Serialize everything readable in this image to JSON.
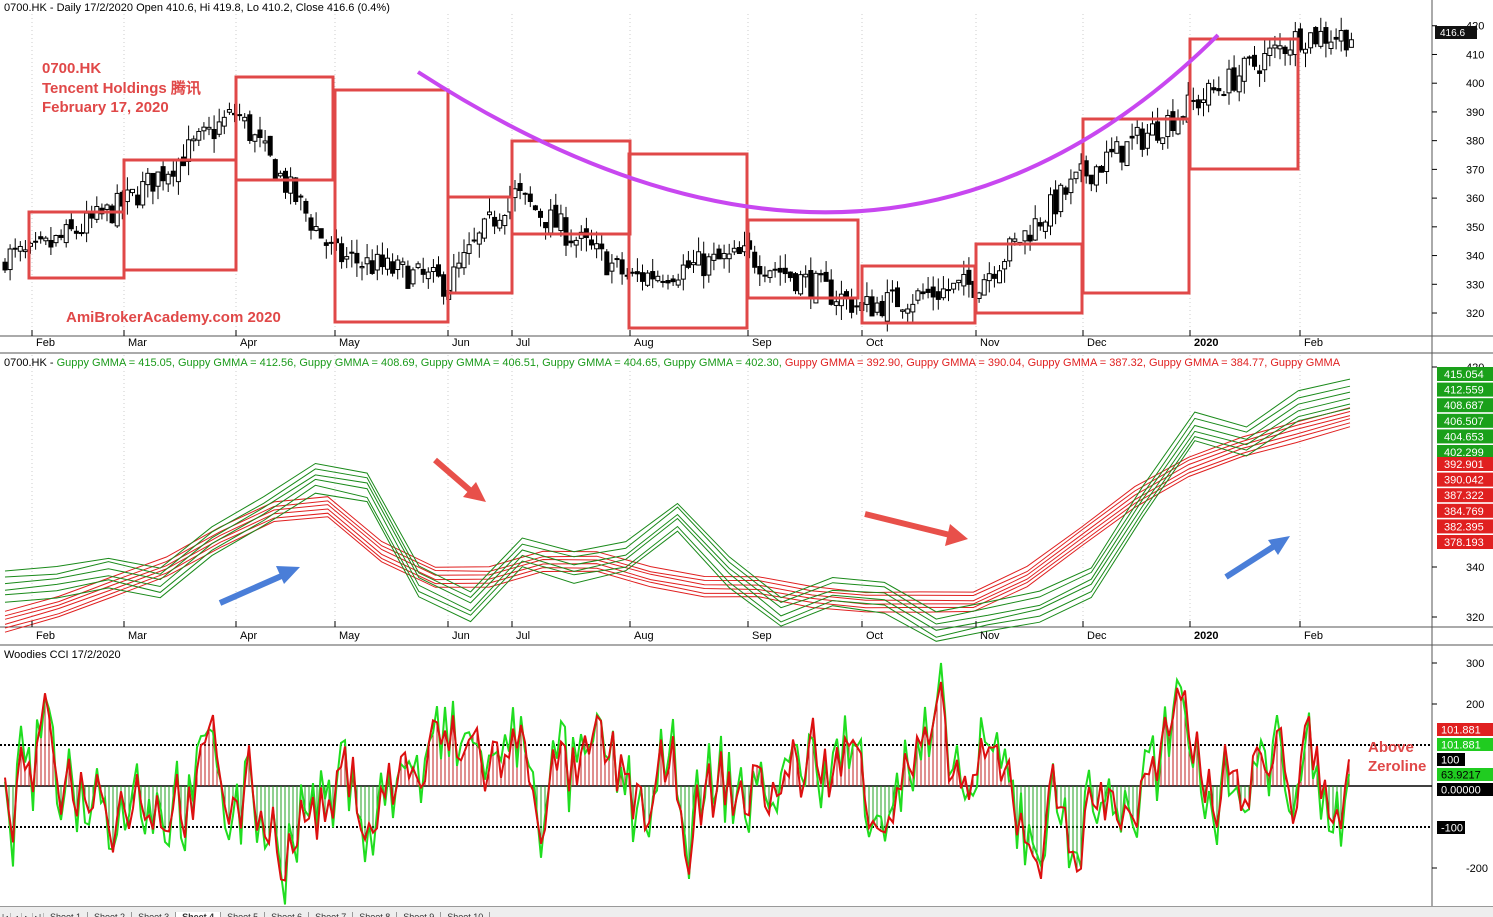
{
  "panes": {
    "price": {
      "header": "0700.HK - Daily 17/2/2020 Open 410.6, Hi 419.8, Lo 410.2, Close 416.6 (0.4%)",
      "ticker": "0700.HK",
      "company": "Tencent Holdings  腾讯",
      "date": "February 17, 2020",
      "watermark": "AmiBrokerAcademy.com  2020",
      "last_value": "416.6",
      "yticks": [
        "420",
        "410",
        "400",
        "390",
        "380",
        "370",
        "360",
        "350",
        "340",
        "330",
        "320"
      ]
    },
    "gmma": {
      "header_prefix": "0700.HK -",
      "header_green": [
        "Guppy GMMA = 415.05,",
        "Guppy GMMA = 412.56,",
        "Guppy GMMA = 408.69,",
        "Guppy GMMA = 406.51,",
        "Guppy GMMA = 404.65,",
        "Guppy GMMA = 402.30,"
      ],
      "header_red": [
        "Guppy GMMA = 392.90,",
        "Guppy GMMA = 390.04,",
        "Guppy GMMA = 387.32,",
        "Guppy GMMA = 384.77,",
        "Guppy GMMA"
      ],
      "green_values": [
        "415.054",
        "412.559",
        "408.687",
        "406.507",
        "404.653",
        "402.299"
      ],
      "red_values": [
        "392.901",
        "390.042",
        "387.322",
        "384.769",
        "382.395",
        "378.193"
      ],
      "yticks": [
        "420",
        "340",
        "320"
      ]
    },
    "cci": {
      "header": "Woodies CCI  17/2/2020",
      "annotation_line1": "Above",
      "annotation_line2": "Zeroline",
      "labels": [
        "101.881",
        "101.881",
        "100",
        "63.9217",
        "0.00000",
        "-100"
      ],
      "yticks": [
        "300",
        "200",
        "-200"
      ]
    }
  },
  "x_axis_labels": [
    "Feb",
    "Mar",
    "Apr",
    "May",
    "Jun",
    "Jul",
    "Aug",
    "Sep",
    "Oct",
    "Nov",
    "Dec",
    "2020",
    "Feb"
  ],
  "tabs": [
    "Sheet 1",
    "Sheet 2",
    "Sheet 3",
    "Sheet 4",
    "Sheet 5",
    "Sheet 6",
    "Sheet 7",
    "Sheet 8",
    "Sheet 9",
    "Sheet 10"
  ],
  "active_tab": "Sheet 4",
  "colors": {
    "green": "#1a8a1a",
    "red": "#e02020",
    "box": "#e04848",
    "arc": "#c847f0",
    "arrow_red": "#e8504a",
    "arrow_blue": "#4a7ed8",
    "cci_green": "#20dd20"
  },
  "chart_data": [
    {
      "type": "candlestick",
      "title": "0700.HK - Daily 17/2/2020 Open 410.6, Hi 419.8, Lo 410.2, Close 416.6 (0.4%)",
      "ylim": [
        312,
        422
      ],
      "x_labels": [
        "Feb",
        "Mar",
        "Apr",
        "May",
        "Jun",
        "Jul",
        "Aug",
        "Sep",
        "Oct",
        "Nov",
        "Dec",
        "2020",
        "Feb"
      ],
      "monthly_close_approx": [
        340,
        358,
        390,
        340,
        330,
        362,
        332,
        340,
        322,
        330,
        368,
        392,
        416.6
      ],
      "last": {
        "open": 410.6,
        "high": 419.8,
        "low": 410.2,
        "close": 416.6,
        "change_pct": 0.4
      }
    },
    {
      "type": "line",
      "title": "Guppy GMMA",
      "series": [
        {
          "name": "Guppy GMMA",
          "last": 415.054
        },
        {
          "name": "Guppy GMMA",
          "last": 412.559
        },
        {
          "name": "Guppy GMMA",
          "last": 408.687
        },
        {
          "name": "Guppy GMMA",
          "last": 406.507
        },
        {
          "name": "Guppy GMMA",
          "last": 404.653
        },
        {
          "name": "Guppy GMMA",
          "last": 402.299
        },
        {
          "name": "Guppy GMMA",
          "last": 392.901
        },
        {
          "name": "Guppy GMMA",
          "last": 390.042
        },
        {
          "name": "Guppy GMMA",
          "last": 387.322
        },
        {
          "name": "Guppy GMMA",
          "last": 384.769
        },
        {
          "name": "Guppy GMMA",
          "last": 382.395
        },
        {
          "name": "Guppy GMMA",
          "last": 378.193
        }
      ],
      "fast_path": [
        338,
        340,
        344,
        340,
        356,
        368,
        382,
        378,
        340,
        330,
        352,
        346,
        350,
        366,
        344,
        328,
        336,
        334,
        322,
        326,
        330,
        340,
        372,
        402,
        396,
        410,
        415
      ],
      "slow_path": [
        322,
        328,
        336,
        344,
        356,
        366,
        368,
        350,
        340,
        340,
        346,
        346,
        340,
        336,
        336,
        332,
        330,
        330,
        330,
        340,
        356,
        372,
        384,
        392,
        398,
        404
      ],
      "ylim": [
        316,
        424
      ]
    },
    {
      "type": "line",
      "title": "Woodies CCI  17/2/2020",
      "ylim": [
        -250,
        330
      ],
      "reference_lines": [
        100,
        0,
        -100
      ],
      "last": {
        "cci": 101.881,
        "turbo": 63.9217
      }
    }
  ]
}
